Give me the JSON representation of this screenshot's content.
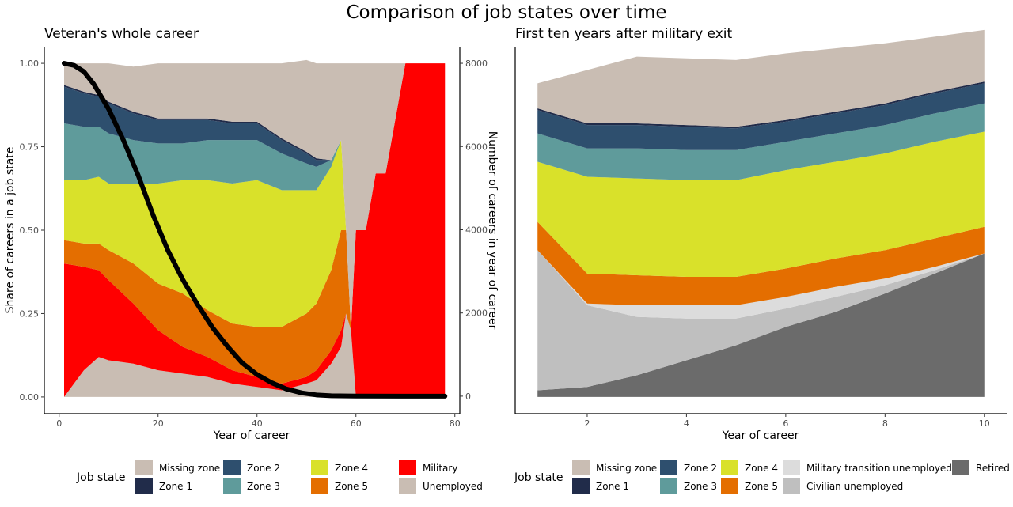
{
  "title": "Comparison of job states over time",
  "colors": {
    "Missing zone": "#c9bdb3",
    "Zone 1": "#212c4a",
    "Zone 2": "#2e4f6e",
    "Zone 3": "#5f9b9b",
    "Zone 4": "#d9e12a",
    "Zone 5": "#e46e00",
    "Military": "#ff0000",
    "Unemployed": "#c9bdb3",
    "Military transition unemployed": "#dcdcdc",
    "Civilian unemployed": "#bfbfbf",
    "Retired": "#6b6b6b",
    "Career count line": "#000000"
  },
  "chart_data": [
    {
      "type": "area",
      "stacked": true,
      "title": "Veteran's whole career",
      "xlabel": "Year of career",
      "ylabel": "Share of careers in a job state",
      "y2label": "Number of careers in year of career",
      "xlim": [
        -3,
        81
      ],
      "ylim": [
        -0.05,
        1.05
      ],
      "y2lim": [
        -420,
        8400
      ],
      "xticks": [
        "0",
        "20",
        "40",
        "60",
        "80"
      ],
      "xtick_values": [
        0,
        20,
        40,
        60,
        80
      ],
      "yticks": [
        "0.00",
        "0.25",
        "0.50",
        "0.75",
        "1.00"
      ],
      "ytick_values": [
        0,
        0.25,
        0.5,
        0.75,
        1.0
      ],
      "y2ticks": [
        "0",
        "2000",
        "4000",
        "6000",
        "8000"
      ],
      "y2tick_values": [
        0,
        2000,
        4000,
        6000,
        8000
      ],
      "legend_title": "Job state",
      "legend_position": "bottom",
      "legend": [
        "Missing zone",
        "Zone 1",
        "Zone 2",
        "Zone 3",
        "Zone 4",
        "Zone 5",
        "Military",
        "Unemployed"
      ],
      "stack_order": [
        "Unemployed",
        "Military",
        "Zone 5",
        "Zone 4",
        "Zone 3",
        "Zone 2",
        "Zone 1",
        "Missing zone"
      ],
      "x": [
        1,
        5,
        8,
        10,
        15,
        20,
        25,
        30,
        35,
        40,
        45,
        50,
        52,
        55,
        57,
        58,
        59,
        60,
        62,
        64,
        66,
        70,
        78
      ],
      "series": [
        {
          "name": "Unemployed",
          "values": [
            0.0,
            0.08,
            0.12,
            0.11,
            0.1,
            0.08,
            0.07,
            0.06,
            0.04,
            0.03,
            0.02,
            0.04,
            0.05,
            0.1,
            0.15,
            0.25,
            0.2,
            0.0,
            0.0,
            0.0,
            0.0,
            0.0,
            0.0
          ]
        },
        {
          "name": "Military",
          "values": [
            0.4,
            0.31,
            0.26,
            0.24,
            0.18,
            0.12,
            0.08,
            0.06,
            0.04,
            0.03,
            0.02,
            0.02,
            0.03,
            0.04,
            0.05,
            0.0,
            0.0,
            0.5,
            0.5,
            0.67,
            0.67,
            1.0,
            1.0
          ]
        },
        {
          "name": "Zone 5",
          "values": [
            0.07,
            0.07,
            0.08,
            0.09,
            0.12,
            0.14,
            0.16,
            0.14,
            0.14,
            0.15,
            0.17,
            0.19,
            0.2,
            0.24,
            0.3,
            0.25,
            0.0,
            0.0,
            0.0,
            0.0,
            0.0,
            0.0,
            0.0
          ]
        },
        {
          "name": "Zone 4",
          "values": [
            0.18,
            0.19,
            0.2,
            0.2,
            0.24,
            0.3,
            0.34,
            0.39,
            0.42,
            0.44,
            0.41,
            0.37,
            0.34,
            0.31,
            0.27,
            0.0,
            0.0,
            0.0,
            0.0,
            0.0,
            0.0,
            0.0,
            0.0
          ]
        },
        {
          "name": "Zone 3",
          "values": [
            0.17,
            0.16,
            0.15,
            0.15,
            0.13,
            0.12,
            0.11,
            0.12,
            0.13,
            0.12,
            0.11,
            0.08,
            0.07,
            0.02,
            0.0,
            0.0,
            0.0,
            0.0,
            0.0,
            0.0,
            0.0,
            0.0,
            0.0
          ]
        },
        {
          "name": "Zone 2",
          "values": [
            0.11,
            0.1,
            0.09,
            0.09,
            0.08,
            0.07,
            0.07,
            0.06,
            0.05,
            0.05,
            0.04,
            0.03,
            0.02,
            0.0,
            0.0,
            0.0,
            0.0,
            0.0,
            0.0,
            0.0,
            0.0,
            0.0,
            0.0
          ]
        },
        {
          "name": "Zone 1",
          "values": [
            0.005,
            0.005,
            0.005,
            0.005,
            0.005,
            0.005,
            0.005,
            0.005,
            0.005,
            0.005,
            0.005,
            0.005,
            0.005,
            0.0,
            0.0,
            0.0,
            0.0,
            0.0,
            0.0,
            0.0,
            0.0,
            0.0,
            0.0
          ]
        },
        {
          "name": "Missing zone",
          "values": [
            0.065,
            0.085,
            0.095,
            0.115,
            0.135,
            0.165,
            0.165,
            0.165,
            0.175,
            0.175,
            0.225,
            0.275,
            0.285,
            0.29,
            0.23,
            0.5,
            0.8,
            0.5,
            0.5,
            0.33,
            0.33,
            0.0,
            0.0
          ]
        }
      ],
      "line": {
        "axis": "secondary",
        "x": [
          1,
          3,
          5,
          7,
          10,
          13,
          16,
          19,
          22,
          25,
          28,
          31,
          34,
          37,
          40,
          43,
          46,
          49,
          52,
          55,
          60,
          70,
          78
        ],
        "values": [
          8000,
          7950,
          7800,
          7500,
          6900,
          6150,
          5300,
          4350,
          3500,
          2800,
          2200,
          1650,
          1200,
          800,
          520,
          320,
          170,
          80,
          30,
          10,
          2,
          0,
          0
        ]
      }
    },
    {
      "type": "area",
      "stacked": true,
      "title": "First ten years after military exit",
      "xlabel": "Year of career",
      "xlim": [
        0.55,
        10.45
      ],
      "ylim": [
        -0.05,
        1.05
      ],
      "xticks": [
        "2",
        "4",
        "6",
        "8",
        "10"
      ],
      "xtick_values": [
        2,
        4,
        6,
        8,
        10
      ],
      "legend_title": "Job state",
      "legend_position": "bottom",
      "legend": [
        "Missing zone",
        "Zone 1",
        "Zone 2",
        "Zone 3",
        "Zone 4",
        "Zone 5",
        "Military transition unemployed",
        "Civilian unemployed",
        "Retired"
      ],
      "stack_order": [
        "Retired",
        "Civilian unemployed",
        "Military transition unemployed",
        "Zone 5",
        "Zone 4",
        "Zone 3",
        "Zone 2",
        "Zone 1",
        "Missing zone"
      ],
      "x": [
        1,
        2,
        3,
        4,
        5,
        6,
        7,
        8,
        9,
        10
      ],
      "series": [
        {
          "name": "Retired",
          "values": [
            0.02,
            0.03,
            0.065,
            0.11,
            0.155,
            0.21,
            0.255,
            0.31,
            0.37,
            0.43
          ]
        },
        {
          "name": "Civilian unemployed",
          "values": [
            0.42,
            0.245,
            0.175,
            0.125,
            0.08,
            0.055,
            0.045,
            0.025,
            0.01,
            0.0
          ]
        },
        {
          "name": "Military transition unemployed",
          "values": [
            0.0,
            0.005,
            0.035,
            0.04,
            0.04,
            0.035,
            0.03,
            0.02,
            0.01,
            0.0
          ]
        },
        {
          "name": "Zone 5",
          "values": [
            0.085,
            0.09,
            0.09,
            0.085,
            0.085,
            0.085,
            0.085,
            0.085,
            0.085,
            0.08
          ]
        },
        {
          "name": "Zone 4",
          "values": [
            0.18,
            0.29,
            0.29,
            0.29,
            0.29,
            0.295,
            0.29,
            0.29,
            0.29,
            0.285
          ]
        },
        {
          "name": "Zone 3",
          "values": [
            0.085,
            0.085,
            0.09,
            0.09,
            0.09,
            0.085,
            0.085,
            0.085,
            0.085,
            0.085
          ]
        },
        {
          "name": "Zone 2",
          "values": [
            0.07,
            0.07,
            0.07,
            0.07,
            0.065,
            0.06,
            0.06,
            0.06,
            0.06,
            0.06
          ]
        },
        {
          "name": "Zone 1",
          "values": [
            0.005,
            0.005,
            0.005,
            0.005,
            0.005,
            0.005,
            0.005,
            0.005,
            0.005,
            0.005
          ]
        },
        {
          "name": "Missing zone",
          "values": [
            0.075,
            0.16,
            0.2,
            0.2,
            0.2,
            0.2,
            0.19,
            0.18,
            0.165,
            0.155
          ]
        }
      ]
    }
  ]
}
